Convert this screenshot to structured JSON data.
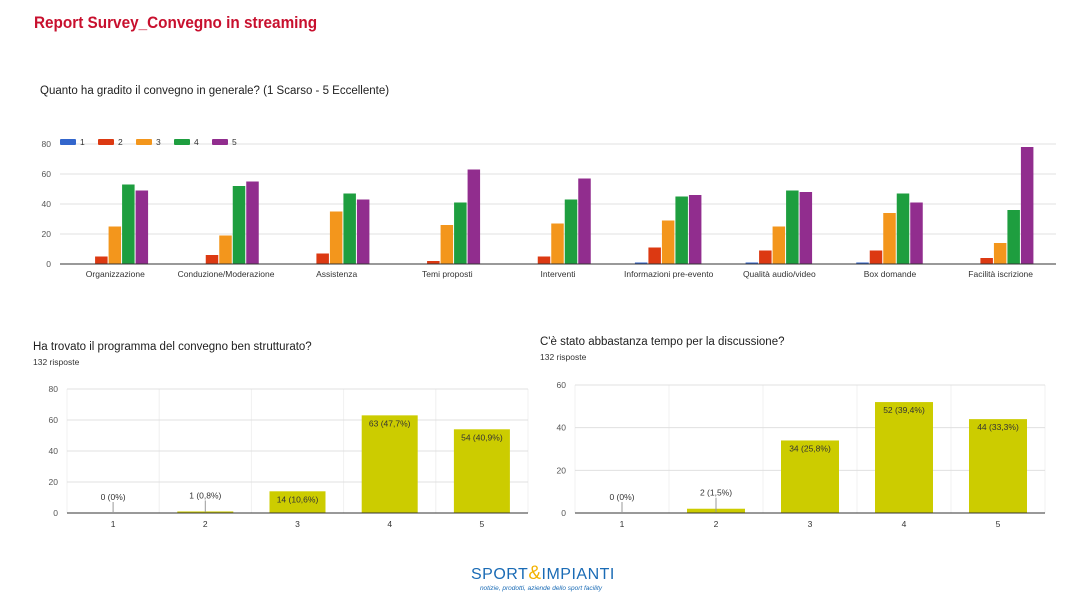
{
  "page": {
    "title": "Report Survey_Convegno in streaming"
  },
  "logo": {
    "part1": "SPORT",
    "amp": "&",
    "part2": "IMPIANTI",
    "tagline": "notizie, prodotti, aziende dello sport facility"
  },
  "colors": {
    "title": "#c8102e",
    "series": [
      "#3366cc",
      "#dc3912",
      "#f3961c",
      "#1e9e3f",
      "#912d8e"
    ],
    "single_bar": "#cccc00",
    "grid": "#e0e0e0",
    "baseline": "#333333"
  },
  "chart1": {
    "question": "Quanto ha gradito il convegno in generale? (1 Scarso - 5 Eccellente)"
  },
  "chart2": {
    "question": "Ha trovato il programma del convegno ben strutturato?",
    "responses": "132 risposte"
  },
  "chart3": {
    "question": "C'è stato abbastanza tempo per la discussione?",
    "responses": "132 risposte"
  },
  "chart_data": [
    {
      "type": "bar",
      "title": "Quanto ha gradito il convegno in generale? (1 Scarso - 5 Eccellente)",
      "categories": [
        "Organizzazione",
        "Conduzione/Moderazione",
        "Assistenza",
        "Temi proposti",
        "Interventi",
        "Informazioni pre-evento",
        "Qualità audio/video",
        "Box domande",
        "Facilità iscrizione"
      ],
      "series": [
        {
          "name": "1",
          "values": [
            0,
            0,
            0,
            0,
            0,
            1,
            1,
            1,
            0
          ]
        },
        {
          "name": "2",
          "values": [
            5,
            6,
            7,
            2,
            5,
            11,
            9,
            9,
            4
          ]
        },
        {
          "name": "3",
          "values": [
            25,
            19,
            35,
            26,
            27,
            29,
            25,
            34,
            14
          ]
        },
        {
          "name": "4",
          "values": [
            53,
            52,
            47,
            41,
            43,
            45,
            49,
            47,
            36
          ]
        },
        {
          "name": "5",
          "values": [
            49,
            55,
            43,
            63,
            57,
            46,
            48,
            41,
            78
          ]
        }
      ],
      "yticks": [
        "0",
        "20",
        "40",
        "60",
        "80"
      ],
      "ylim": [
        0,
        80
      ],
      "legend": "top-left"
    },
    {
      "type": "bar",
      "title": "Ha trovato il programma del convegno ben strutturato?",
      "categories": [
        "1",
        "2",
        "3",
        "4",
        "5"
      ],
      "values": [
        0,
        1,
        14,
        63,
        54
      ],
      "data_labels": [
        "0 (0%)",
        "1 (0,8%)",
        "14 (10,6%)",
        "63 (47,7%)",
        "54 (40,9%)"
      ],
      "yticks": [
        "0",
        "20",
        "40",
        "60",
        "80"
      ],
      "ylim": [
        0,
        80
      ]
    },
    {
      "type": "bar",
      "title": "C'è stato abbastanza tempo per la discussione?",
      "categories": [
        "1",
        "2",
        "3",
        "4",
        "5"
      ],
      "values": [
        0,
        2,
        34,
        52,
        44
      ],
      "data_labels": [
        "0 (0%)",
        "2 (1,5%)",
        "34 (25,8%)",
        "52 (39,4%)",
        "44 (33,3%)"
      ],
      "yticks": [
        "0",
        "20",
        "40",
        "60"
      ],
      "ylim": [
        0,
        60
      ]
    }
  ]
}
